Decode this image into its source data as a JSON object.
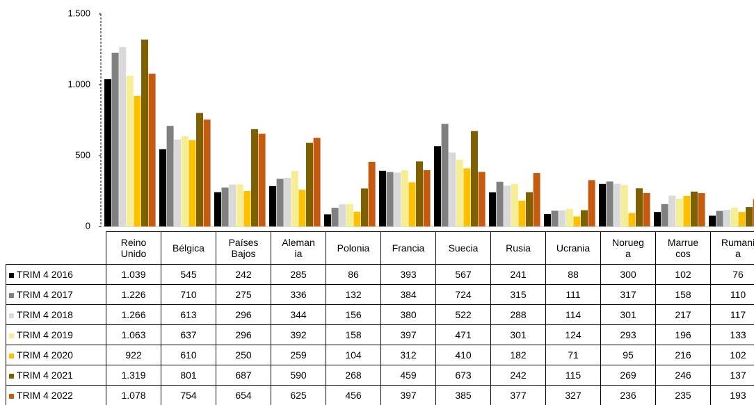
{
  "chart_data": {
    "type": "bar",
    "categories": [
      "Reino Unido",
      "Bélgica",
      "Países Bajos",
      "Alemania",
      "Polonia",
      "Francia",
      "Suecia",
      "Rusia",
      "Ucrania",
      "Noruega",
      "Marruecos",
      "Rumania"
    ],
    "series": [
      {
        "name": "TRIM 4 2016",
        "color": "#000000",
        "values": [
          1039,
          545,
          242,
          285,
          86,
          393,
          567,
          241,
          88,
          300,
          102,
          76
        ],
        "value_labels": [
          "1.039",
          "545",
          "242",
          "285",
          "86",
          "393",
          "567",
          "241",
          "88",
          "300",
          "102",
          "76"
        ]
      },
      {
        "name": "TRIM 4 2017",
        "color": "#808080",
        "values": [
          1226,
          710,
          275,
          336,
          132,
          384,
          724,
          315,
          111,
          317,
          158,
          110
        ],
        "value_labels": [
          "1.226",
          "710",
          "275",
          "336",
          "132",
          "384",
          "724",
          "315",
          "111",
          "317",
          "158",
          "110"
        ]
      },
      {
        "name": "TRIM 4 2018",
        "color": "#d9d9d9",
        "values": [
          1266,
          613,
          296,
          344,
          156,
          380,
          522,
          288,
          114,
          301,
          217,
          117
        ],
        "value_labels": [
          "1.266",
          "613",
          "296",
          "344",
          "156",
          "380",
          "522",
          "288",
          "114",
          "301",
          "217",
          "117"
        ]
      },
      {
        "name": "TRIM 4 2019",
        "color": "#f6ee94",
        "values": [
          1063,
          637,
          296,
          392,
          158,
          397,
          471,
          301,
          124,
          293,
          196,
          133
        ],
        "value_labels": [
          "1.063",
          "637",
          "296",
          "392",
          "158",
          "397",
          "471",
          "301",
          "124",
          "293",
          "196",
          "133"
        ]
      },
      {
        "name": "TRIM 4 2020",
        "color": "#ffc000",
        "values": [
          922,
          610,
          250,
          259,
          104,
          312,
          410,
          182,
          71,
          95,
          216,
          102
        ],
        "value_labels": [
          "922",
          "610",
          "250",
          "259",
          "104",
          "312",
          "410",
          "182",
          "71",
          "95",
          "216",
          "102"
        ]
      },
      {
        "name": "TRIM 4 2021",
        "color": "#7f6000",
        "values": [
          1319,
          801,
          687,
          590,
          268,
          459,
          673,
          242,
          115,
          269,
          246,
          137
        ],
        "value_labels": [
          "1.319",
          "801",
          "687",
          "590",
          "268",
          "459",
          "673",
          "242",
          "115",
          "269",
          "246",
          "137"
        ]
      },
      {
        "name": "TRIM 4 2022",
        "color": "#c55a11",
        "values": [
          1078,
          754,
          654,
          625,
          456,
          397,
          385,
          377,
          327,
          236,
          235,
          193
        ],
        "value_labels": [
          "1.078",
          "754",
          "654",
          "625",
          "456",
          "397",
          "385",
          "377",
          "327",
          "236",
          "235",
          "193"
        ]
      }
    ],
    "ylim": [
      0,
      1500
    ],
    "yticks": [
      0,
      500,
      {
        "value": 1000,
        "label": "1.000"
      },
      {
        "value": 1500,
        "label": "1.500"
      }
    ],
    "grid": false
  }
}
